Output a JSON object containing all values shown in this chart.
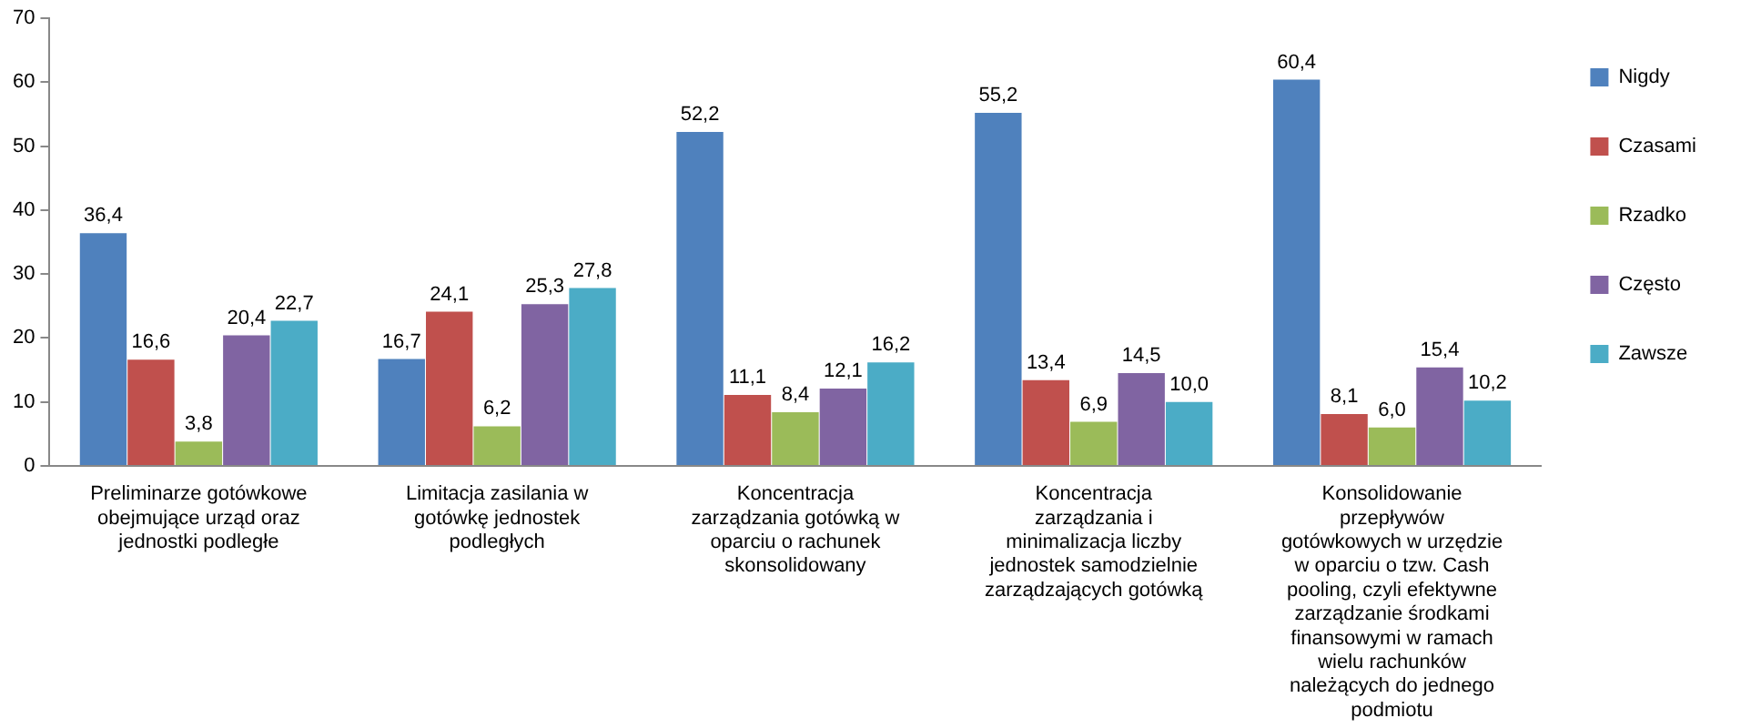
{
  "chart_data": {
    "type": "bar",
    "categories": [
      "Preliminarze gotówkowe obejmujące urząd oraz jednostki podległe",
      "Limitacja zasilania w gotówkę jednostek podległych",
      "Koncentracja zarządzania gotówką w oparciu o rachunek skonsolidowany",
      "Koncentracja zarządzania i minimalizacja liczby jednostek samodzielnie zarządzających gotówką",
      "Konsolidowanie przepływów gotówkowych w urzędzie w oparciu o tzw. Cash pooling, czyli efektywne zarządzanie środkami finansowymi w ramach wielu rachunków należących do jednego podmiotu"
    ],
    "series": [
      {
        "name": "Nigdy",
        "color": "#4f81bd",
        "values": [
          36.4,
          16.7,
          52.2,
          55.2,
          60.4
        ],
        "value_labels": [
          "36,4",
          "16,7",
          "52,2",
          "55,2",
          "60,4"
        ]
      },
      {
        "name": "Czasami",
        "color": "#c0504d",
        "values": [
          16.6,
          24.1,
          11.1,
          13.4,
          8.1
        ],
        "value_labels": [
          "16,6",
          "24,1",
          "11,1",
          "13,4",
          "8,1"
        ]
      },
      {
        "name": "Rzadko",
        "color": "#9bbb59",
        "values": [
          3.8,
          6.2,
          8.4,
          6.9,
          6.0
        ],
        "value_labels": [
          "3,8",
          "6,2",
          "8,4",
          "6,9",
          "6,0"
        ]
      },
      {
        "name": "Często",
        "color": "#8064a2",
        "values": [
          20.4,
          25.3,
          12.1,
          14.5,
          15.4
        ],
        "value_labels": [
          "20,4",
          "25,3",
          "12,1",
          "14,5",
          "15,4"
        ]
      },
      {
        "name": "Zawsze",
        "color": "#4bacc6",
        "values": [
          22.7,
          27.8,
          16.2,
          10.0,
          10.2
        ],
        "value_labels": [
          "22,7",
          "27,8",
          "16,2",
          "10,0",
          "10,2"
        ]
      }
    ],
    "ylim": [
      0,
      70
    ],
    "yticks": [
      0,
      10,
      20,
      30,
      40,
      50,
      60,
      70
    ],
    "grid": false,
    "legend": "right"
  }
}
